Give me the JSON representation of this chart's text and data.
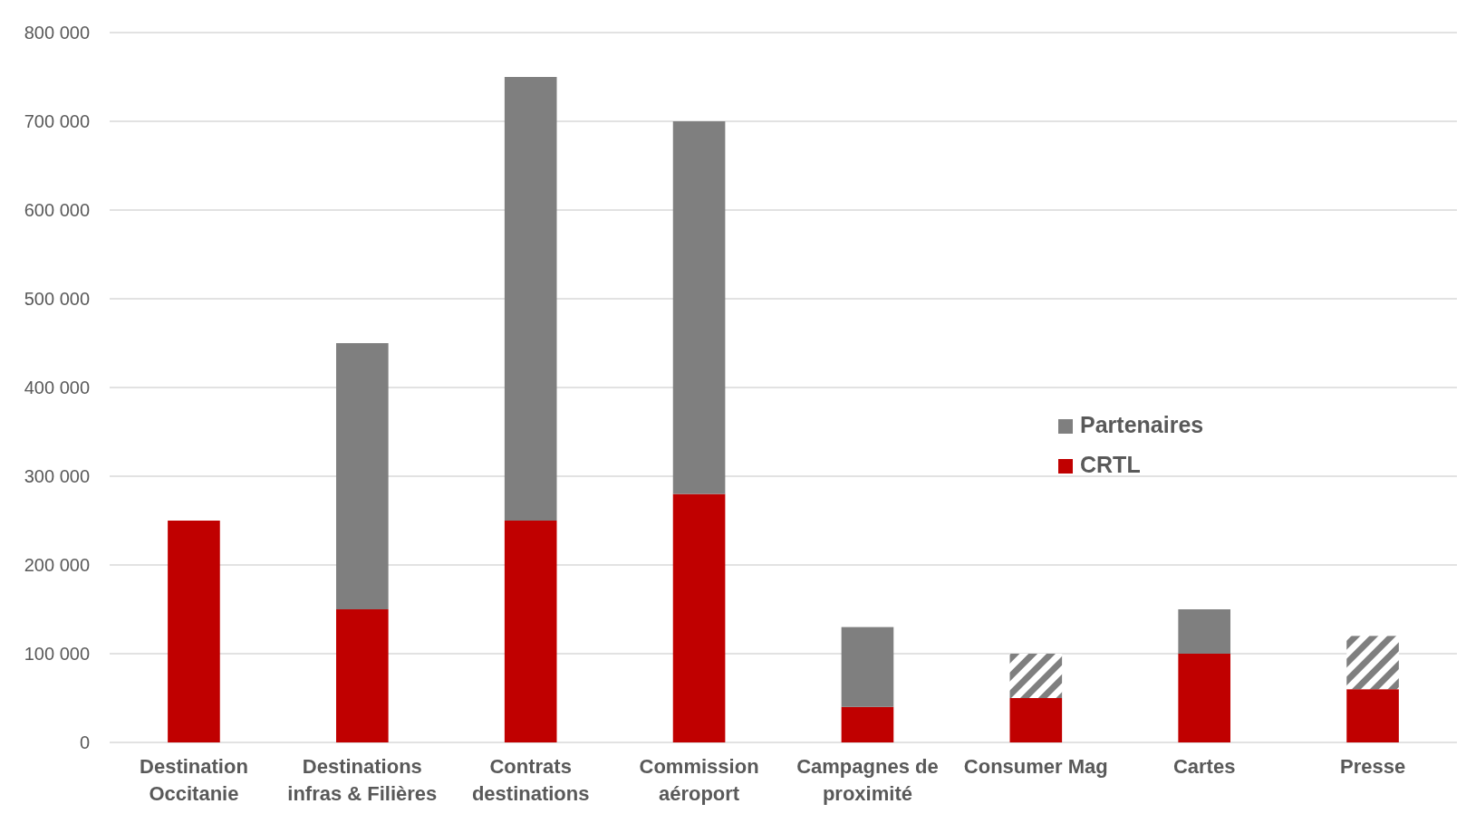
{
  "chart_data": {
    "type": "bar",
    "stacked": true,
    "categories": [
      "Destination Occitanie",
      "Destinations infras & Filières",
      "Contrats destinations",
      "Commission aéroport",
      "Campagnes de proximité",
      "Consumer Mag",
      "Cartes",
      "Presse"
    ],
    "series": [
      {
        "name": "CRTL",
        "color": "#c00000",
        "values": [
          250000,
          150000,
          250000,
          280000,
          40000,
          50000,
          100000,
          60000
        ]
      },
      {
        "name": "Partenaires",
        "color": "#7f7f7f",
        "values": [
          0,
          300000,
          500000,
          420000,
          90000,
          null,
          50000,
          null
        ]
      },
      {
        "color": "#7f7f7f",
        "values": [
          null,
          null,
          null,
          null,
          null,
          50000,
          null,
          60000
        ]
      }
    ],
    "ylim": [
      0,
      800000
    ],
    "yticks": [
      {
        "value": 0,
        "label": "0"
      },
      {
        "value": 100000,
        "label": "100 000"
      },
      {
        "value": 200000,
        "label": "200 000"
      },
      {
        "value": 300000,
        "label": "300 000"
      },
      {
        "value": 400000,
        "label": "400 000"
      },
      {
        "value": 500000,
        "label": "500 000"
      },
      {
        "value": 600000,
        "label": "600 000"
      },
      {
        "value": 700000,
        "label": "700 000"
      },
      {
        "value": 800000,
        "label": "800 000"
      }
    ],
    "grid": "y",
    "legend": "right"
  }
}
